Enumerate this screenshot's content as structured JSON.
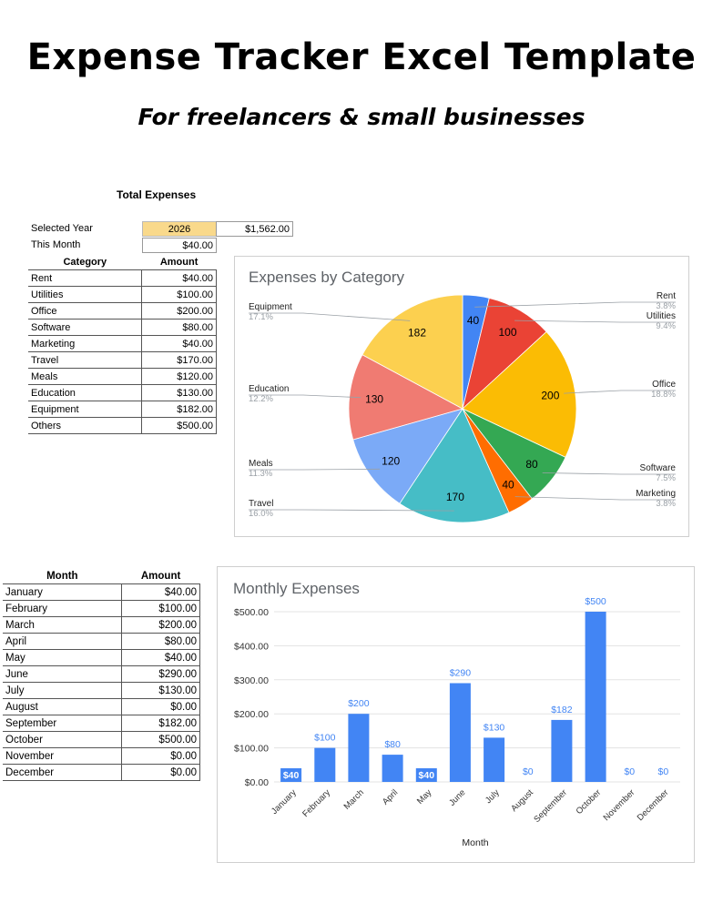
{
  "header": {
    "title": "Expense Tracker Excel Template",
    "subtitle": "For freelancers & small businesses"
  },
  "summary": {
    "heading": "Total Expenses",
    "selected_year_label": "Selected Year",
    "selected_year": "2026",
    "total": "$1,562.00",
    "this_month_label": "This Month",
    "this_month": "$40.00"
  },
  "category_table": {
    "headers": [
      "Category",
      "Amount"
    ],
    "rows": [
      {
        "label": "Rent",
        "amount": "$40.00"
      },
      {
        "label": "Utilities",
        "amount": "$100.00"
      },
      {
        "label": "Office",
        "amount": "$200.00"
      },
      {
        "label": "Software",
        "amount": "$80.00"
      },
      {
        "label": "Marketing",
        "amount": "$40.00"
      },
      {
        "label": "Travel",
        "amount": "$170.00"
      },
      {
        "label": "Meals",
        "amount": "$120.00"
      },
      {
        "label": "Education",
        "amount": "$130.00"
      },
      {
        "label": "Equipment",
        "amount": "$182.00"
      },
      {
        "label": "Others",
        "amount": "$500.00"
      }
    ]
  },
  "month_table": {
    "headers": [
      "Month",
      "Amount"
    ],
    "rows": [
      {
        "label": "January",
        "amount": "$40.00"
      },
      {
        "label": "February",
        "amount": "$100.00"
      },
      {
        "label": "March",
        "amount": "$200.00"
      },
      {
        "label": "April",
        "amount": "$80.00"
      },
      {
        "label": "May",
        "amount": "$40.00"
      },
      {
        "label": "June",
        "amount": "$290.00"
      },
      {
        "label": "July",
        "amount": "$130.00"
      },
      {
        "label": "August",
        "amount": "$0.00"
      },
      {
        "label": "September",
        "amount": "$182.00"
      },
      {
        "label": "October",
        "amount": "$500.00"
      },
      {
        "label": "November",
        "amount": "$0.00"
      },
      {
        "label": "December",
        "amount": "$0.00"
      }
    ]
  },
  "colors": {
    "year_highlight": "#f9d98b",
    "bar": "#4285f4",
    "bar_label": "#4285f4"
  },
  "chart_data": [
    {
      "type": "pie",
      "title": "Expenses by Category",
      "slices": [
        {
          "name": "Rent",
          "value": 40,
          "percent": "3.8%",
          "color": "#4285f4"
        },
        {
          "name": "Utilities",
          "value": 100,
          "percent": "9.4%",
          "color": "#ea4335"
        },
        {
          "name": "Office",
          "value": 200,
          "percent": "18.8%",
          "color": "#fbbc04"
        },
        {
          "name": "Software",
          "value": 80,
          "percent": "7.5%",
          "color": "#34a853"
        },
        {
          "name": "Marketing",
          "value": 40,
          "percent": "3.8%",
          "color": "#ff6d01"
        },
        {
          "name": "Travel",
          "value": 170,
          "percent": "16.0%",
          "color": "#46bdc6"
        },
        {
          "name": "Meals",
          "value": 120,
          "percent": "11.3%",
          "color": "#7baaf7"
        },
        {
          "name": "Education",
          "value": 130,
          "percent": "12.2%",
          "color": "#f07b72"
        },
        {
          "name": "Equipment",
          "value": 182,
          "percent": "17.1%",
          "color": "#fcd04f"
        }
      ]
    },
    {
      "type": "bar",
      "title": "Monthly Expenses",
      "xlabel": "Month",
      "ylabel": "",
      "categories": [
        "January",
        "February",
        "March",
        "April",
        "May",
        "June",
        "July",
        "August",
        "September",
        "October",
        "November",
        "December"
      ],
      "values": [
        40,
        100,
        200,
        80,
        40,
        290,
        130,
        0,
        182,
        500,
        0,
        0
      ],
      "data_labels": [
        "$40",
        "$100",
        "$200",
        "$80",
        "$40",
        "$290",
        "$130",
        "$0",
        "$182",
        "$500",
        "$0",
        "$0"
      ],
      "yticks": [
        "$0.00",
        "$100.00",
        "$200.00",
        "$300.00",
        "$400.00",
        "$500.00"
      ],
      "ylim": [
        0,
        500
      ],
      "grid": true
    }
  ]
}
